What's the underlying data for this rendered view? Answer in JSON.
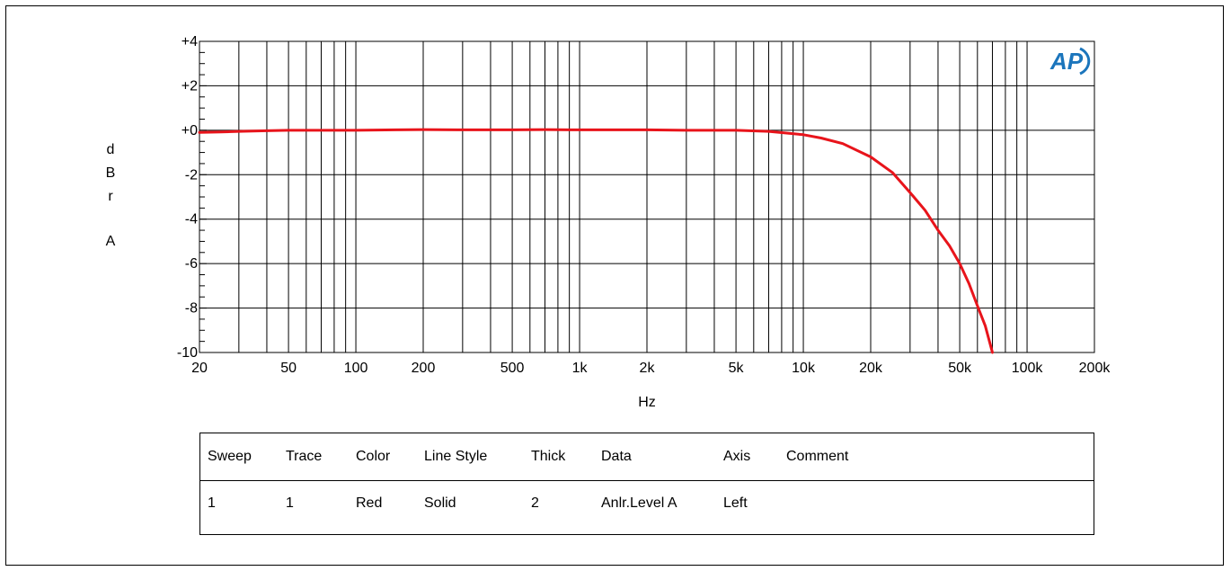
{
  "chart_data": {
    "type": "line",
    "xscale": "log",
    "xlim": [
      20,
      200000
    ],
    "ylim": [
      -10,
      4
    ],
    "xlabel": "Hz",
    "ylabel_letters": [
      "d",
      "B",
      "r",
      "A"
    ],
    "grid": true,
    "x_ticks": [
      {
        "v": 20,
        "label": "20"
      },
      {
        "v": 50,
        "label": "50"
      },
      {
        "v": 100,
        "label": "100"
      },
      {
        "v": 200,
        "label": "200"
      },
      {
        "v": 500,
        "label": "500"
      },
      {
        "v": 1000,
        "label": "1k"
      },
      {
        "v": 2000,
        "label": "2k"
      },
      {
        "v": 5000,
        "label": "5k"
      },
      {
        "v": 10000,
        "label": "10k"
      },
      {
        "v": 20000,
        "label": "20k"
      },
      {
        "v": 50000,
        "label": "50k"
      },
      {
        "v": 100000,
        "label": "100k"
      },
      {
        "v": 200000,
        "label": "200k"
      }
    ],
    "y_ticks": [
      {
        "v": 4,
        "label": "+4"
      },
      {
        "v": 2,
        "label": "+2"
      },
      {
        "v": 0,
        "label": "+0"
      },
      {
        "v": -2,
        "label": "-2"
      },
      {
        "v": -4,
        "label": "-4"
      },
      {
        "v": -6,
        "label": "-6"
      },
      {
        "v": -8,
        "label": "-8"
      },
      {
        "v": -10,
        "label": "-10"
      }
    ],
    "series": [
      {
        "color": "#e8141b",
        "x": [
          20,
          25,
          30,
          40,
          50,
          70,
          100,
          150,
          200,
          300,
          500,
          700,
          1000,
          1500,
          2000,
          3000,
          5000,
          7000,
          10000,
          12000,
          15000,
          20000,
          25000,
          30000,
          35000,
          40000,
          45000,
          50000,
          55000,
          60000,
          65000,
          70000
        ],
        "y": [
          -0.1,
          -0.08,
          -0.05,
          -0.02,
          0.0,
          0.0,
          0.0,
          0.02,
          0.03,
          0.02,
          0.02,
          0.03,
          0.02,
          0.02,
          0.02,
          0.0,
          0.0,
          -0.05,
          -0.2,
          -0.35,
          -0.6,
          -1.2,
          -1.9,
          -2.8,
          -3.6,
          -4.5,
          -5.2,
          -6.0,
          -6.9,
          -7.9,
          -8.8,
          -10.0
        ]
      }
    ]
  },
  "legend": {
    "headers": [
      "Sweep",
      "Trace",
      "Color",
      "Line Style",
      "Thick",
      "Data",
      "Axis",
      "Comment"
    ],
    "rows": [
      [
        "1",
        "1",
        "Red",
        "Solid",
        "2",
        "Anlr.Level A",
        "Left",
        ""
      ]
    ]
  },
  "logo": {
    "text": "AP",
    "color": "#1b75bc"
  }
}
